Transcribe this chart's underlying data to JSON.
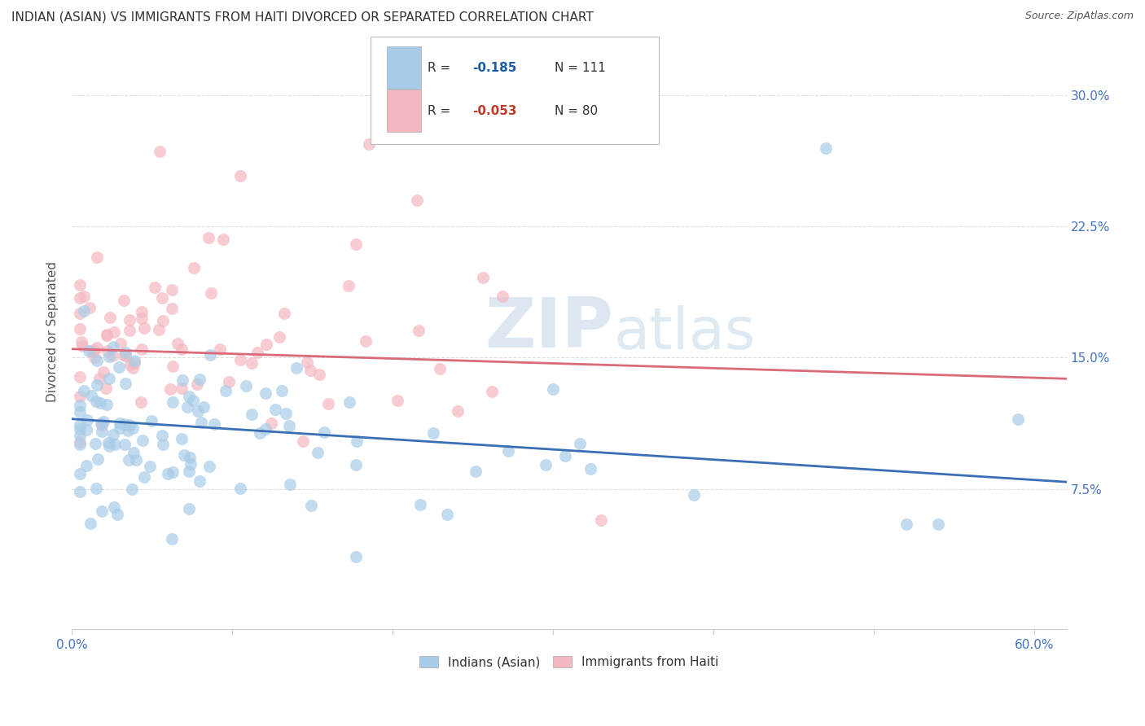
{
  "title": "INDIAN (ASIAN) VS IMMIGRANTS FROM HAITI DIVORCED OR SEPARATED CORRELATION CHART",
  "source": "Source: ZipAtlas.com",
  "ylabel": "Divorced or Separated",
  "ytick_vals": [
    0.0,
    0.075,
    0.15,
    0.225,
    0.3
  ],
  "ytick_labels": [
    "",
    "7.5%",
    "15.0%",
    "22.5%",
    "30.0%"
  ],
  "xlim": [
    0.0,
    0.62
  ],
  "ylim": [
    -0.005,
    0.335
  ],
  "legend_r_blue": "R = -0.185",
  "legend_n_blue": "N = 111",
  "legend_r_pink": "R = -0.053",
  "legend_n_pink": "N = 80",
  "legend_label_blue": "Indians (Asian)",
  "legend_label_pink": "Immigrants from Haiti",
  "color_blue": "#a8cce8",
  "color_pink": "#f4b8c1",
  "color_blue_line": "#3a6fb5",
  "color_pink_line": "#d96a7a",
  "watermark_zip": "ZIP",
  "watermark_atlas": "atlas",
  "blue_trend_start_x": 0.0,
  "blue_trend_start_y": 0.115,
  "blue_trend_end_x": 0.62,
  "blue_trend_end_y": 0.079,
  "pink_trend_start_x": 0.0,
  "pink_trend_start_y": 0.155,
  "pink_trend_end_x": 0.62,
  "pink_trend_end_y": 0.138
}
